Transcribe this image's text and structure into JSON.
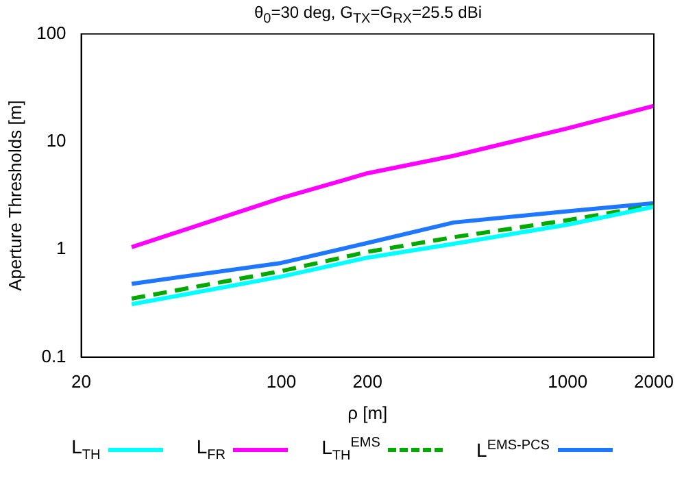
{
  "chart_data": {
    "type": "line",
    "title": "θ$_{0}$=30 deg, G$_{TX}$=G$_{RX}$=25.5 dBi",
    "xlabel": "ρ [m]",
    "ylabel": "Aperture Thresholds [m]",
    "x": [
      30,
      100,
      200,
      400,
      1000,
      2000
    ],
    "series": [
      {
        "name": "L$_{TH}$",
        "color": "#00ffff",
        "values": [
          0.31,
          0.56,
          0.84,
          1.13,
          1.7,
          2.49
        ]
      },
      {
        "name": "L$_{FR}$",
        "color": "#ff00ff",
        "values": [
          1.05,
          3.0,
          5.1,
          7.4,
          13.3,
          21.5
        ]
      },
      {
        "name": "L$_{TH}$$^{EMS}$",
        "color": "#00aa00",
        "line_style": "dashed",
        "values": [
          0.35,
          0.63,
          0.95,
          1.3,
          1.87,
          2.56
        ]
      },
      {
        "name": "L$^{EMS-PCS}$",
        "color": "#1e78ff",
        "values": [
          0.48,
          0.75,
          1.15,
          1.78,
          2.26,
          2.69
        ]
      }
    ],
    "log": "xy",
    "xlim": [
      20,
      2000
    ],
    "ylim": [
      0.1,
      100
    ],
    "xticks": [
      20,
      100,
      200,
      1000,
      2000
    ],
    "yticks": [
      0.1,
      1,
      10,
      100
    ],
    "grid": false,
    "legend": "bottom",
    "marker": "none"
  }
}
